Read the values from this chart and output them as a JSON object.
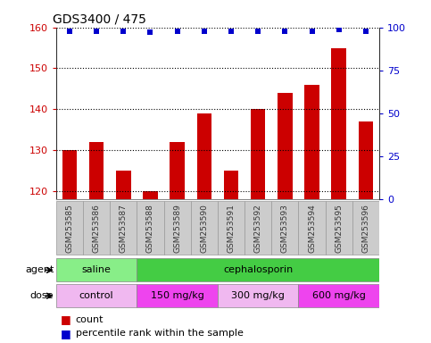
{
  "title": "GDS3400 / 475",
  "samples": [
    "GSM253585",
    "GSM253586",
    "GSM253587",
    "GSM253588",
    "GSM253589",
    "GSM253590",
    "GSM253591",
    "GSM253592",
    "GSM253593",
    "GSM253594",
    "GSM253595",
    "GSM253596"
  ],
  "counts": [
    130,
    132,
    125,
    120,
    132,
    139,
    125,
    140,
    144,
    146,
    155,
    137
  ],
  "percentiles": [
    98,
    98,
    98,
    97,
    98,
    98,
    98,
    98,
    98,
    98,
    99,
    98
  ],
  "ylim_left": [
    118,
    160
  ],
  "ylim_right": [
    0,
    100
  ],
  "yticks_left": [
    120,
    130,
    140,
    150,
    160
  ],
  "yticks_right": [
    0,
    25,
    50,
    75,
    100
  ],
  "bar_color": "#cc0000",
  "dot_color": "#0000cc",
  "agent_groups": [
    {
      "label": "saline",
      "start": 0,
      "end": 3,
      "color": "#88ee88"
    },
    {
      "label": "cephalosporin",
      "start": 3,
      "end": 12,
      "color": "#44cc44"
    }
  ],
  "dose_groups": [
    {
      "label": "control",
      "start": 0,
      "end": 3,
      "color": "#f0b8f0"
    },
    {
      "label": "150 mg/kg",
      "start": 3,
      "end": 6,
      "color": "#ee44ee"
    },
    {
      "label": "300 mg/kg",
      "start": 6,
      "end": 9,
      "color": "#f0b8f0"
    },
    {
      "label": "600 mg/kg",
      "start": 9,
      "end": 12,
      "color": "#ee44ee"
    }
  ],
  "bar_width": 0.55,
  "grid_color": "#000000",
  "tick_label_color": "#cc0000",
  "right_axis_color": "#0000cc",
  "bg_color": "#ffffff",
  "sample_bg_color": "#cccccc",
  "sample_label_fontsize": 6.5
}
